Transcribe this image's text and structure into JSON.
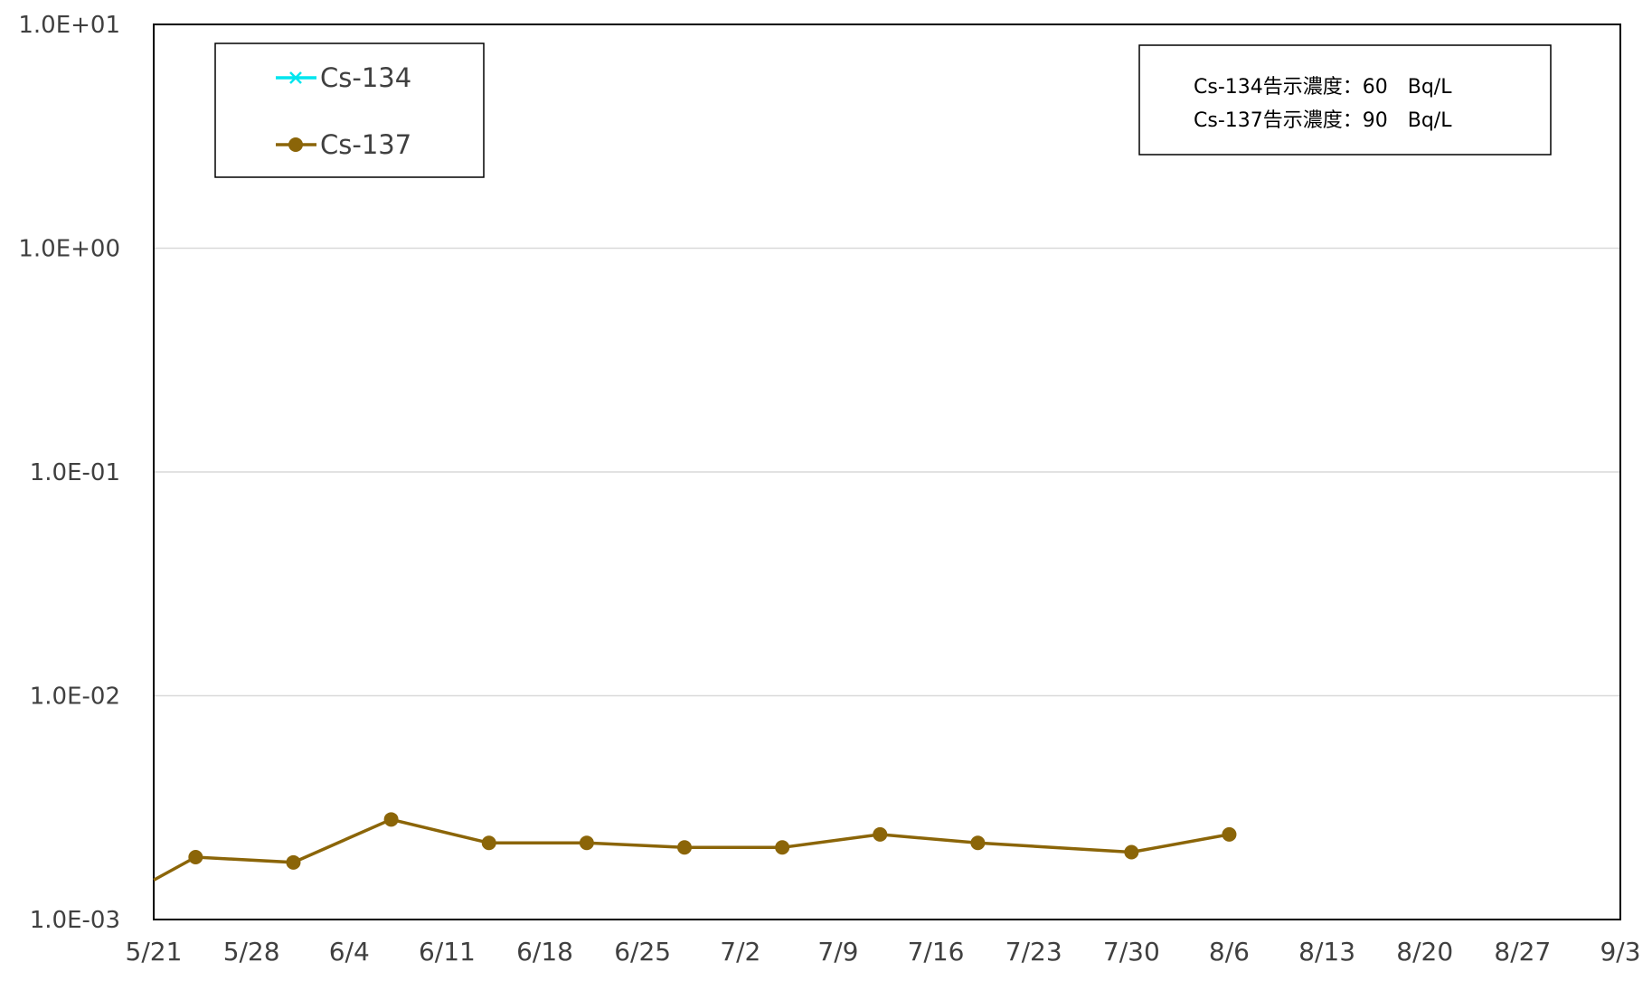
{
  "chart_data": {
    "type": "line",
    "title": "",
    "xlabel": "",
    "ylabel": "",
    "y_scale": "log",
    "ylim": [
      0.001,
      10
    ],
    "xlim": [
      "2012-05-21",
      "2012-09-03"
    ],
    "y_tick_labels": [
      "1.0E-03",
      "1.0E-02",
      "1.0E-01",
      "1.0E+00",
      "1.0E+01"
    ],
    "x_tick_labels": [
      "5/21",
      "5/28",
      "6/4",
      "6/11",
      "6/18",
      "6/25",
      "7/2",
      "7/9",
      "7/16",
      "7/23",
      "7/30",
      "8/6",
      "8/13",
      "8/20",
      "8/27",
      "9/3"
    ],
    "grid": "horizontal",
    "legend_position": "top-left",
    "series": [
      {
        "name": "Cs-134",
        "color": "#00e5ee",
        "marker": "x",
        "points": []
      },
      {
        "name": "Cs-137",
        "color": "#8b6508",
        "marker": "circle",
        "points": [
          {
            "x": "2012-05-21",
            "y": 0.0015
          },
          {
            "x": "2012-05-24",
            "y": 0.0019
          },
          {
            "x": "2012-05-31",
            "y": 0.0018
          },
          {
            "x": "2012-06-07",
            "y": 0.0028
          },
          {
            "x": "2012-06-14",
            "y": 0.0022
          },
          {
            "x": "2012-06-21",
            "y": 0.0022
          },
          {
            "x": "2012-06-28",
            "y": 0.0021
          },
          {
            "x": "2012-07-05",
            "y": 0.0021
          },
          {
            "x": "2012-07-12",
            "y": 0.0024
          },
          {
            "x": "2012-07-19",
            "y": 0.0022
          },
          {
            "x": "2012-07-30",
            "y": 0.002
          },
          {
            "x": "2012-08-06",
            "y": 0.0024
          }
        ]
      }
    ],
    "annotations": [
      "Cs-134告示濃度：60　Bq/L",
      "Cs-137告示濃度：90　Bq/L"
    ]
  }
}
